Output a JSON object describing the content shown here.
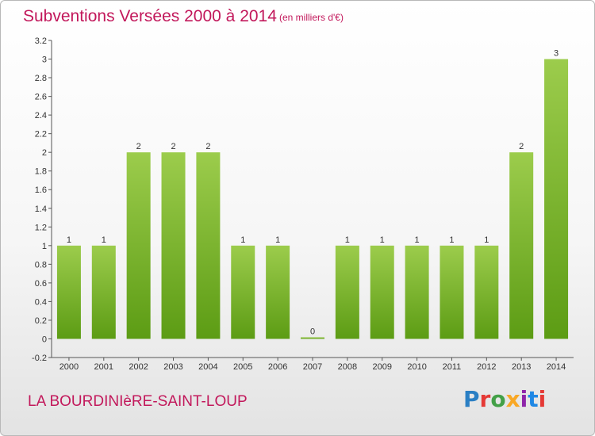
{
  "header": {
    "title": "Subventions Versées 2000 à 2014",
    "subtitle": "(en milliers d'€)"
  },
  "footer": {
    "commune": "LA BOURDINIèRE-SAINT-LOUP",
    "logo": "Proxiti"
  },
  "chart_data": {
    "type": "bar",
    "title": "Subventions Versées 2000 à 2014",
    "subtitle": "(en milliers d'€)",
    "xlabel": "",
    "ylabel": "",
    "categories": [
      "2000",
      "2001",
      "2002",
      "2003",
      "2004",
      "2005",
      "2006",
      "2007",
      "2008",
      "2009",
      "2010",
      "2011",
      "2012",
      "2013",
      "2014"
    ],
    "values": [
      1,
      1,
      2,
      2,
      2,
      1,
      1,
      0,
      1,
      1,
      1,
      1,
      1,
      2,
      3
    ],
    "data_labels": [
      "1",
      "1",
      "2",
      "2",
      "2",
      "1",
      "1",
      "0",
      "1",
      "1",
      "1",
      "1",
      "1",
      "2",
      "3"
    ],
    "ylim": [
      -0.2,
      3.2
    ],
    "yticks": [
      "-0.2",
      "0",
      "0.2",
      "0.4",
      "0.6",
      "0.8",
      "1",
      "1.2",
      "1.4",
      "1.6",
      "1.8",
      "2",
      "2.2",
      "2.4",
      "2.6",
      "2.8",
      "3",
      "3.2"
    ],
    "ytick_values": [
      -0.2,
      0,
      0.2,
      0.4,
      0.6,
      0.8,
      1,
      1.2,
      1.4,
      1.6,
      1.8,
      2,
      2.2,
      2.4,
      2.6,
      2.8,
      3,
      3.2
    ],
    "grid": false,
    "bar_color_light": "#9ccc4c",
    "bar_color_dark": "#5c9c14"
  },
  "colors": {
    "title": "#c2185b",
    "axis": "#555555",
    "logo_letters": [
      "#2a7fc4",
      "#e53935",
      "#43a047",
      "#f9a825",
      "#8e24aa",
      "#1e88e5",
      "#e53935"
    ]
  }
}
